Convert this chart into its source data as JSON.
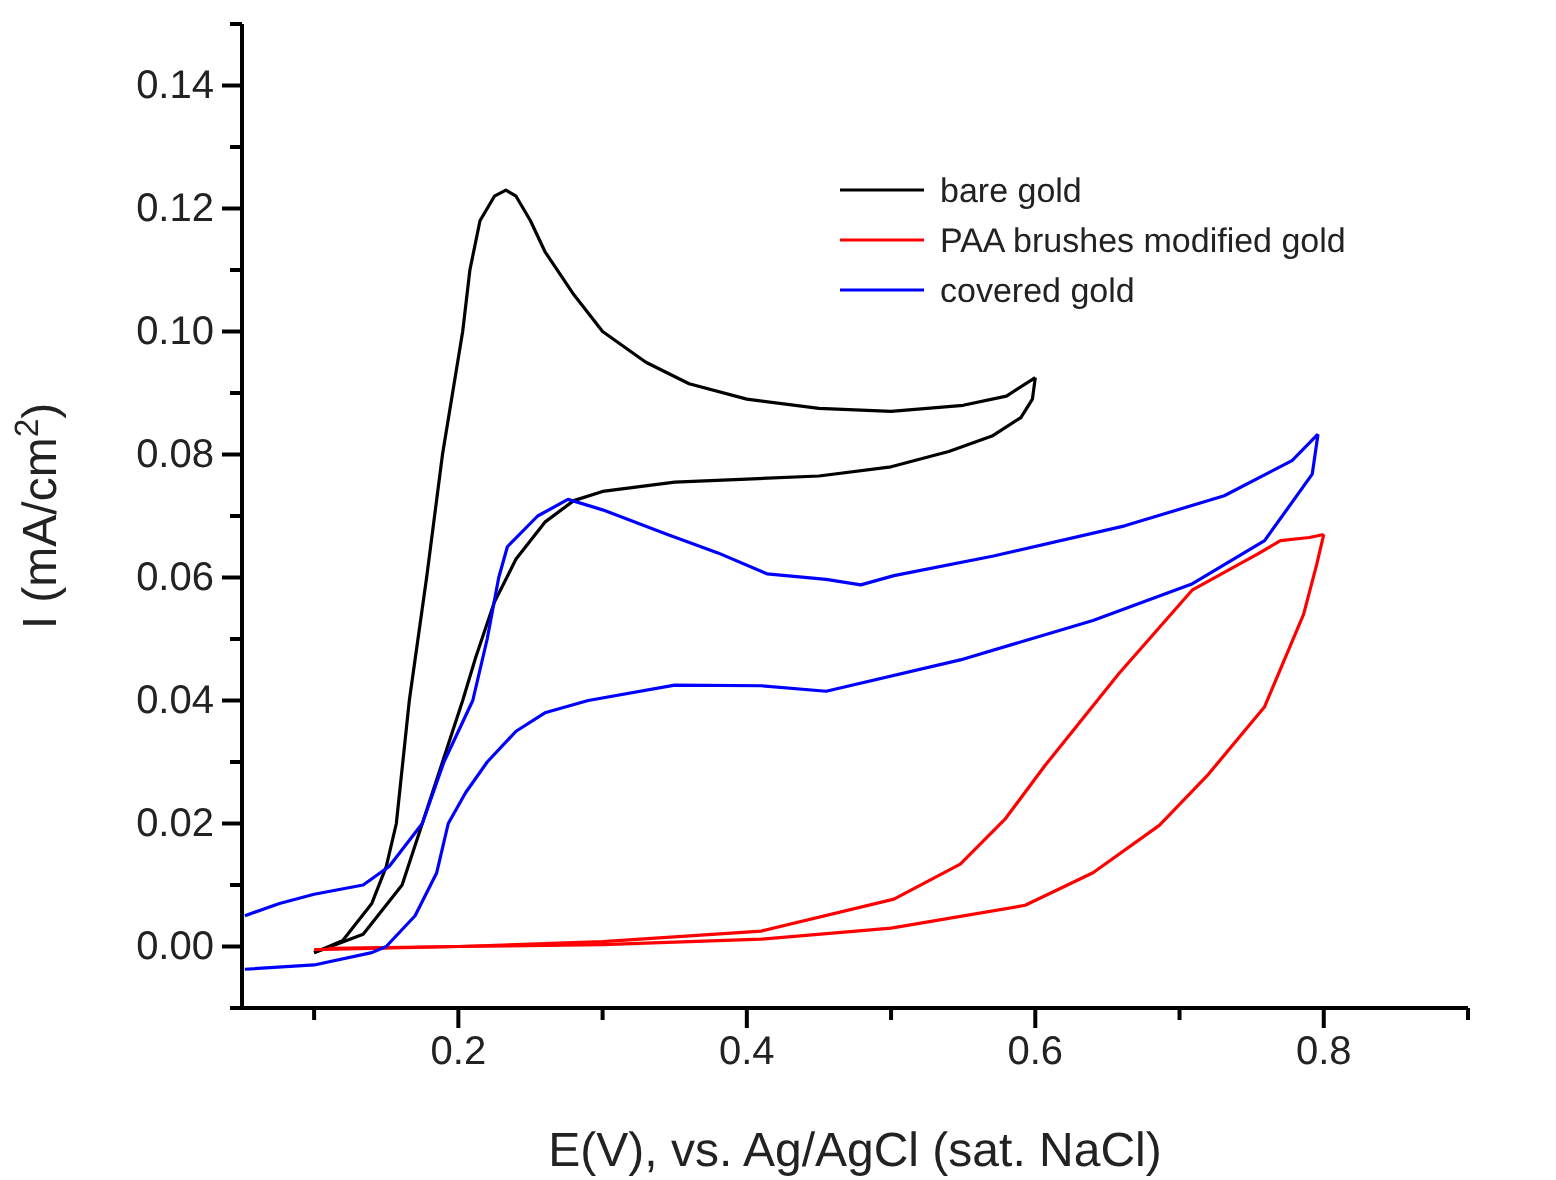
{
  "chart_data": {
    "type": "line",
    "xlabel": "E(V), vs. Ag/AgCl (sat. NaCl)",
    "ylabel": "I (mA/cm$^{2}$)",
    "xlim": [
      0.05,
      0.9
    ],
    "ylim": [
      -0.01,
      0.15
    ],
    "xticks": [
      {
        "value": 0.1,
        "label": null
      },
      0.2,
      {
        "value": 0.3,
        "label": null
      },
      0.4,
      {
        "value": 0.5,
        "label": null
      },
      0.6,
      {
        "value": 0.7,
        "label": null
      },
      0.8,
      {
        "value": 0.9,
        "label": null
      }
    ],
    "yticks": [
      {
        "value": -0.01,
        "label": null
      },
      {
        "value": 0,
        "label": "0.00"
      },
      {
        "value": 0.01,
        "label": null
      },
      {
        "value": 0.02,
        "label": "0.02"
      },
      {
        "value": 0.03,
        "label": null
      },
      {
        "value": 0.04,
        "label": "0.04"
      },
      {
        "value": 0.05,
        "label": null
      },
      {
        "value": 0.06,
        "label": "0.06"
      },
      {
        "value": 0.07,
        "label": null
      },
      {
        "value": 0.08,
        "label": "0.08"
      },
      {
        "value": 0.09,
        "label": null
      },
      {
        "value": 0.1,
        "label": "0.10"
      },
      {
        "value": 0.11,
        "label": null
      },
      {
        "value": 0.12,
        "label": "0.12"
      },
      {
        "value": 0.13,
        "label": null
      },
      {
        "value": 0.14,
        "label": "0.14"
      },
      {
        "value": 0.15,
        "label": null
      }
    ],
    "grid": false,
    "legend": "top right",
    "marker": "none",
    "line_style": "solid",
    "series": [
      {
        "name": "bare gold",
        "color": "#000000",
        "x": [
          0.1,
          0.12,
          0.14,
          0.15,
          0.157,
          0.166,
          0.178,
          0.189,
          0.203,
          0.208,
          0.215,
          0.225,
          0.233,
          0.24,
          0.25,
          0.26,
          0.28,
          0.3,
          0.33,
          0.36,
          0.4,
          0.45,
          0.5,
          0.55,
          0.58,
          0.6
        ],
        "values": [
          -0.001,
          0.001,
          0.007,
          0.013,
          0.02,
          0.04,
          0.06,
          0.08,
          0.1,
          0.11,
          0.118,
          0.122,
          0.123,
          0.122,
          0.118,
          0.113,
          0.106,
          0.1,
          0.095,
          0.0915,
          0.089,
          0.0875,
          0.087,
          0.088,
          0.0895,
          0.0925
        ]
      },
      {
        "color": "#000000",
        "x": [
          0.6,
          0.598,
          0.59,
          0.57,
          0.54,
          0.5,
          0.45,
          0.4,
          0.35,
          0.3,
          0.28,
          0.26,
          0.24,
          0.225,
          0.212,
          0.203,
          0.175,
          0.161,
          0.134,
          0.1
        ],
        "values": [
          0.0925,
          0.089,
          0.086,
          0.083,
          0.0805,
          0.078,
          0.0765,
          0.076,
          0.0755,
          0.074,
          0.0725,
          0.069,
          0.063,
          0.056,
          0.047,
          0.04,
          0.02,
          0.01,
          0.002,
          -0.001
        ]
      },
      {
        "name": "PAA brushes modified gold",
        "color": "#ff0000",
        "x": [
          0.1,
          0.2,
          0.3,
          0.41,
          0.5,
          0.593,
          0.64,
          0.686,
          0.72,
          0.759,
          0.786,
          0.795,
          0.8
        ],
        "values": [
          -0.0005,
          0,
          0.0003,
          0.0012,
          0.003,
          0.0067,
          0.012,
          0.0197,
          0.028,
          0.039,
          0.054,
          0.062,
          0.067
        ]
      },
      {
        "color": "#ff0000",
        "x": [
          0.8,
          0.79,
          0.77,
          0.754,
          0.709,
          0.658,
          0.607,
          0.579,
          0.548,
          0.502,
          0.41,
          0.3,
          0.2,
          0.11
        ],
        "values": [
          0.067,
          0.0665,
          0.066,
          0.0638,
          0.058,
          0.0444,
          0.0295,
          0.0207,
          0.0134,
          0.0077,
          0.0025,
          0.0008,
          0,
          -0.0003
        ]
      },
      {
        "name": "covered gold",
        "color": "#0000ff",
        "x": [
          0.052,
          0.1,
          0.14,
          0.15,
          0.17,
          0.185,
          0.193,
          0.205,
          0.22,
          0.24,
          0.26,
          0.29,
          0.35,
          0.41,
          0.455,
          0.548,
          0.64,
          0.709,
          0.759,
          0.792,
          0.796
        ],
        "values": [
          -0.0037,
          -0.003,
          -0.001,
          0,
          0.005,
          0.012,
          0.02,
          0.025,
          0.03,
          0.035,
          0.038,
          0.04,
          0.0425,
          0.0424,
          0.0415,
          0.0466,
          0.053,
          0.059,
          0.066,
          0.0768,
          0.0833
        ]
      },
      {
        "color": "#0000ff",
        "x": [
          0.796,
          0.778,
          0.731,
          0.662,
          0.571,
          0.502,
          0.479,
          0.455,
          0.414,
          0.38,
          0.345,
          0.3,
          0.276,
          0.255,
          0.234,
          0.228,
          0.22,
          0.21,
          0.19,
          0.175,
          0.152,
          0.134,
          0.1,
          0.076,
          0.052
        ],
        "values": [
          0.0833,
          0.079,
          0.0733,
          0.0684,
          0.0635,
          0.0603,
          0.0588,
          0.0597,
          0.0606,
          0.064,
          0.067,
          0.071,
          0.0727,
          0.07,
          0.065,
          0.06,
          0.05,
          0.04,
          0.03,
          0.02,
          0.013,
          0.01,
          0.0085,
          0.007,
          0.005
        ]
      }
    ]
  }
}
